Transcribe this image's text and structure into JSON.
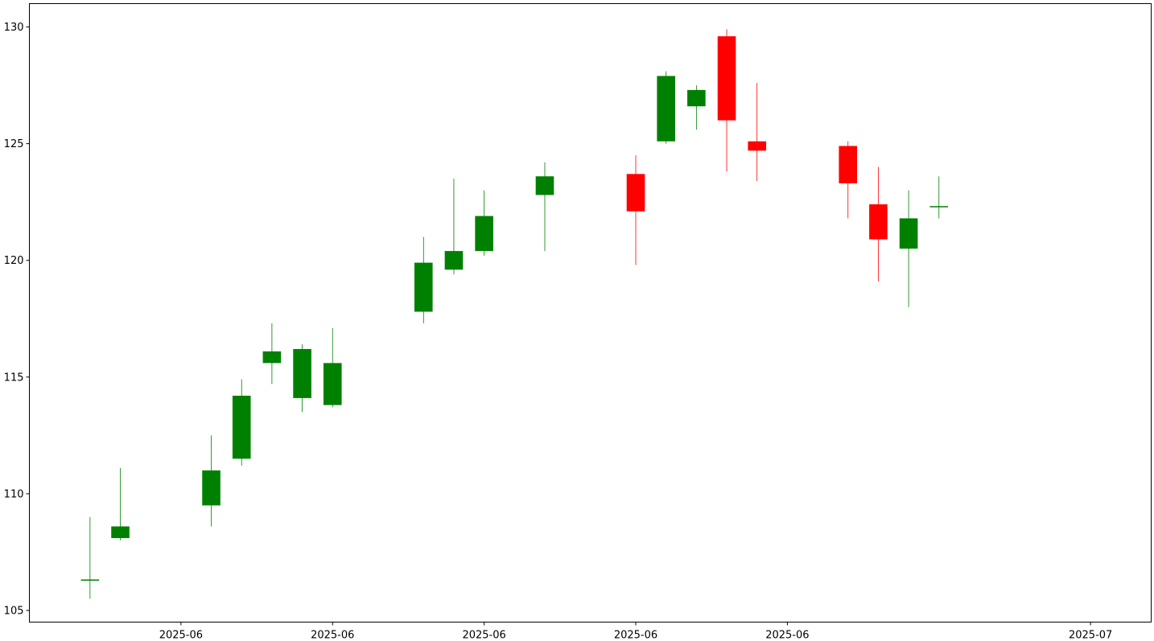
{
  "chart_data": {
    "type": "candlestick",
    "title": "",
    "xlabel": "",
    "ylabel": "",
    "up_color": "#008000",
    "down_color": "#ff0000",
    "grid": false,
    "x_range": [
      "2025-05-27",
      "2025-07-03"
    ],
    "ylim": [
      104.5,
      131.0
    ],
    "y_ticks": [
      105,
      110,
      115,
      120,
      125,
      130
    ],
    "x_ticks": [
      {
        "date": "2025-06-01",
        "label": "2025-06"
      },
      {
        "date": "2025-06-06",
        "label": "2025-06"
      },
      {
        "date": "2025-06-11",
        "label": "2025-06"
      },
      {
        "date": "2025-06-16",
        "label": "2025-06"
      },
      {
        "date": "2025-06-21",
        "label": "2025-06"
      },
      {
        "date": "2025-07-01",
        "label": "2025-07"
      }
    ],
    "candles": [
      {
        "date": "2025-05-29",
        "open": 106.3,
        "high": 109.0,
        "low": 105.5,
        "close": 106.3
      },
      {
        "date": "2025-05-30",
        "open": 108.1,
        "high": 111.1,
        "low": 108.0,
        "close": 108.6
      },
      {
        "date": "2025-06-02",
        "open": 109.5,
        "high": 112.5,
        "low": 108.6,
        "close": 111.0
      },
      {
        "date": "2025-06-03",
        "open": 111.5,
        "high": 114.9,
        "low": 111.2,
        "close": 114.2
      },
      {
        "date": "2025-06-04",
        "open": 115.6,
        "high": 117.3,
        "low": 114.7,
        "close": 116.1
      },
      {
        "date": "2025-06-05",
        "open": 114.1,
        "high": 116.4,
        "low": 113.5,
        "close": 116.2
      },
      {
        "date": "2025-06-06",
        "open": 113.8,
        "high": 117.1,
        "low": 113.7,
        "close": 115.6
      },
      {
        "date": "2025-06-09",
        "open": 117.8,
        "high": 121.0,
        "low": 117.3,
        "close": 119.9
      },
      {
        "date": "2025-06-10",
        "open": 119.6,
        "high": 123.5,
        "low": 119.4,
        "close": 120.4
      },
      {
        "date": "2025-06-11",
        "open": 120.4,
        "high": 123.0,
        "low": 120.2,
        "close": 121.9
      },
      {
        "date": "2025-06-13",
        "open": 122.8,
        "high": 124.2,
        "low": 120.4,
        "close": 123.6
      },
      {
        "date": "2025-06-16",
        "open": 123.7,
        "high": 124.5,
        "low": 119.8,
        "close": 122.1
      },
      {
        "date": "2025-06-17",
        "open": 125.1,
        "high": 128.1,
        "low": 125.0,
        "close": 127.9
      },
      {
        "date": "2025-06-18",
        "open": 126.6,
        "high": 127.5,
        "low": 125.6,
        "close": 127.3
      },
      {
        "date": "2025-06-19",
        "open": 129.6,
        "high": 129.9,
        "low": 123.8,
        "close": 126.0
      },
      {
        "date": "2025-06-20",
        "open": 125.1,
        "high": 127.6,
        "low": 123.4,
        "close": 124.7
      },
      {
        "date": "2025-06-23",
        "open": 124.9,
        "high": 125.1,
        "low": 121.8,
        "close": 123.3
      },
      {
        "date": "2025-06-24",
        "open": 122.4,
        "high": 124.0,
        "low": 119.1,
        "close": 120.9
      },
      {
        "date": "2025-06-25",
        "open": 120.5,
        "high": 123.0,
        "low": 118.0,
        "close": 121.8
      },
      {
        "date": "2025-06-26",
        "open": 122.3,
        "high": 123.6,
        "low": 121.8,
        "close": 122.3
      }
    ]
  }
}
